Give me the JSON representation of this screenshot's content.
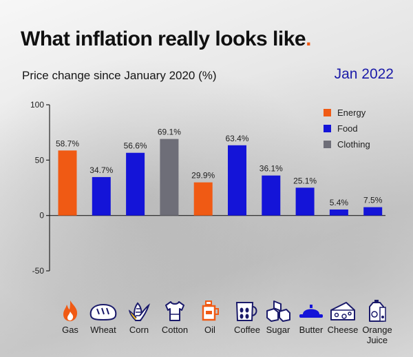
{
  "header": {
    "title": "What inflation really looks like",
    "title_dot": ".",
    "subtitle": "Price change since January 2020 (%)",
    "period": "Jan 2022"
  },
  "colors": {
    "energy": "#f05a14",
    "food": "#1414d8",
    "clothing": "#6e6e78",
    "accent": "#f05a14",
    "period_text": "#1a1aa8"
  },
  "chart_data": {
    "type": "bar",
    "title": "What inflation really looks like",
    "subtitle": "Price change since January 2020 (%)",
    "ylim": [
      -50,
      100
    ],
    "yticks": [
      -50,
      0,
      50,
      100
    ],
    "grid": false,
    "legend_position": "top-right",
    "legend": [
      {
        "name": "Energy",
        "color": "#f05a14"
      },
      {
        "name": "Food",
        "color": "#1414d8"
      },
      {
        "name": "Clothing",
        "color": "#6e6e78"
      }
    ],
    "categories": [
      "Gas",
      "Wheat",
      "Corn",
      "Cotton",
      "Oil",
      "Coffee",
      "Sugar",
      "Butter",
      "Cheese",
      "Orange Juice"
    ],
    "values": [
      58.7,
      34.7,
      56.6,
      69.1,
      29.9,
      63.4,
      36.1,
      25.1,
      5.4,
      7.5
    ],
    "labels": [
      "58.7%",
      "34.7%",
      "56.6%",
      "69.1%",
      "29.9%",
      "63.4%",
      "36.1%",
      "25.1%",
      "5.4%",
      "7.5%"
    ],
    "groups": [
      "Energy",
      "Food",
      "Food",
      "Clothing",
      "Energy",
      "Food",
      "Food",
      "Food",
      "Food",
      "Food"
    ]
  },
  "icons": [
    {
      "name": "flame-icon",
      "label": "Gas"
    },
    {
      "name": "bread-icon",
      "label": "Wheat"
    },
    {
      "name": "corn-icon",
      "label": "Corn"
    },
    {
      "name": "tshirt-icon",
      "label": "Cotton"
    },
    {
      "name": "oil-can-icon",
      "label": "Oil"
    },
    {
      "name": "coffee-mug-icon",
      "label": "Coffee"
    },
    {
      "name": "sugar-cubes-icon",
      "label": "Sugar"
    },
    {
      "name": "butter-dish-icon",
      "label": "Butter"
    },
    {
      "name": "cheese-icon",
      "label": "Cheese"
    },
    {
      "name": "juice-carton-icon",
      "label": "Orange Juice"
    }
  ]
}
